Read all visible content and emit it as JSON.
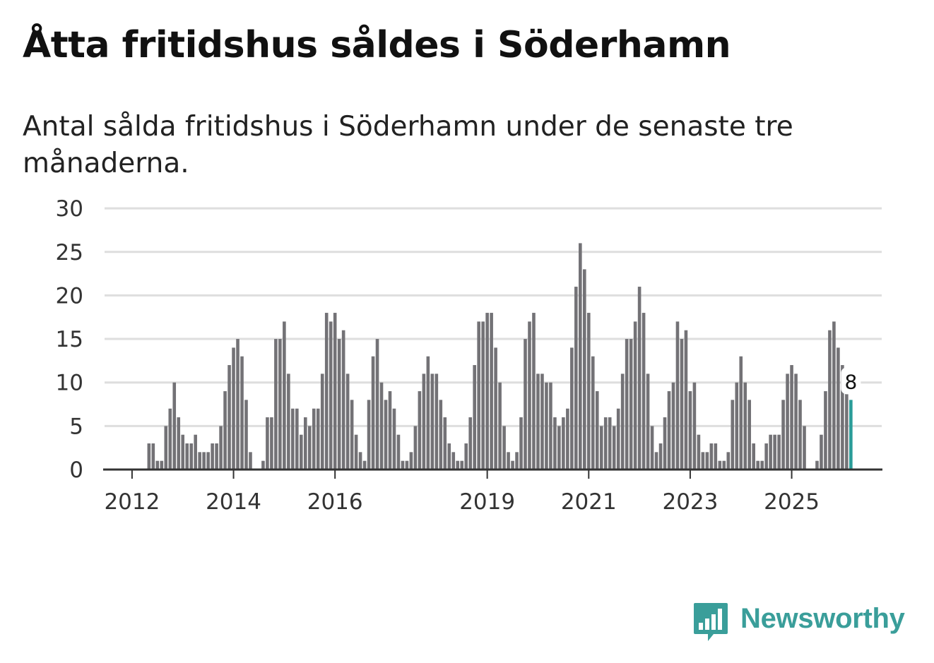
{
  "header": {
    "title": "Åtta fritidshus såldes i Söderhamn",
    "subtitle": "Antal sålda fritidshus i Söderhamn under de senaste tre månaderna."
  },
  "colors": {
    "bar": "#737276",
    "highlight": "#2a9d99",
    "grid": "#dedede",
    "axis": "#333333",
    "brand": "#3a9e9a"
  },
  "chart_data": {
    "type": "bar",
    "title": "Åtta fritidshus såldes i Söderhamn",
    "subtitle": "Antal sålda fritidshus i Söderhamn under de senaste tre månaderna.",
    "xlabel": "",
    "ylabel": "",
    "ylim": [
      0,
      30
    ],
    "yticks": [
      "0",
      "5",
      "10",
      "15",
      "20",
      "25",
      "30"
    ],
    "xtick_labels": [
      {
        "label": "2012",
        "index": 6
      },
      {
        "label": "2014",
        "index": 30
      },
      {
        "label": "2016",
        "index": 54
      },
      {
        "label": "2019",
        "index": 90
      },
      {
        "label": "2021",
        "index": 114
      },
      {
        "label": "2023",
        "index": 138
      },
      {
        "label": "2025",
        "index": 162
      }
    ],
    "grid": true,
    "values": [
      0,
      0,
      0,
      0,
      0,
      0,
      0,
      0,
      0,
      0,
      3,
      3,
      1,
      1,
      5,
      7,
      10,
      6,
      4,
      3,
      3,
      4,
      2,
      2,
      2,
      3,
      3,
      5,
      9,
      12,
      14,
      15,
      13,
      8,
      2,
      0,
      0,
      1,
      6,
      6,
      15,
      15,
      17,
      11,
      7,
      7,
      4,
      6,
      5,
      7,
      7,
      11,
      18,
      17,
      18,
      15,
      16,
      11,
      8,
      4,
      2,
      1,
      8,
      13,
      15,
      10,
      8,
      9,
      7,
      4,
      1,
      1,
      2,
      5,
      9,
      11,
      13,
      11,
      11,
      8,
      6,
      3,
      2,
      1,
      1,
      3,
      6,
      12,
      17,
      17,
      18,
      18,
      14,
      10,
      5,
      2,
      1,
      2,
      6,
      15,
      17,
      18,
      11,
      11,
      10,
      10,
      6,
      5,
      6,
      7,
      14,
      21,
      26,
      23,
      18,
      13,
      9,
      5,
      6,
      6,
      5,
      7,
      11,
      15,
      15,
      17,
      21,
      18,
      11,
      5,
      2,
      3,
      6,
      9,
      10,
      17,
      15,
      16,
      9,
      10,
      4,
      2,
      2,
      3,
      3,
      1,
      1,
      2,
      8,
      10,
      13,
      10,
      8,
      3,
      1,
      1,
      3,
      4,
      4,
      4,
      8,
      11,
      12,
      11,
      8,
      5,
      0,
      0,
      1,
      4,
      9,
      16,
      17,
      14,
      12,
      9,
      8
    ],
    "highlight_last": true,
    "last_label": "8"
  },
  "brand": {
    "name": "Newsworthy",
    "icon": "bar-chart-speech-bubble-icon"
  }
}
